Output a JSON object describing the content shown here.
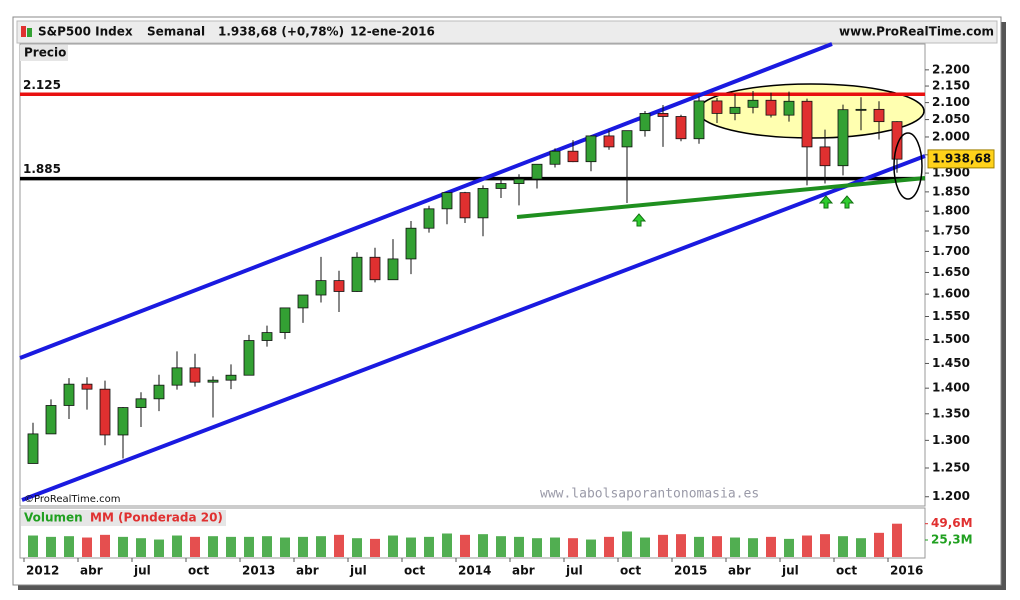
{
  "chart_data": {
    "type": "candlestick",
    "title": "S&P500 Index",
    "period": "Semanal",
    "last_quote": "1.938,68 (+0,78%)",
    "date": "12-ene-2016",
    "source": "www.ProRealTime.com",
    "pane_label": "Precio",
    "watermark": "www.labolsaporantonomasia.es",
    "copyright": "©ProRealTime.com",
    "log_scale": true,
    "up_color": "#33a033",
    "down_color": "#e03030",
    "x": [
      "2012-01",
      "2012-02",
      "2012-03",
      "2012-04",
      "2012-05",
      "2012-06",
      "2012-07",
      "2012-08",
      "2012-09",
      "2012-10",
      "2012-11",
      "2012-12",
      "2013-01",
      "2013-02",
      "2013-03",
      "2013-04",
      "2013-05",
      "2013-06",
      "2013-07",
      "2013-08",
      "2013-09",
      "2013-10",
      "2013-11",
      "2013-12",
      "2014-01",
      "2014-02",
      "2014-03",
      "2014-04",
      "2014-05",
      "2014-06",
      "2014-07",
      "2014-08",
      "2014-09",
      "2014-10",
      "2014-11",
      "2014-12",
      "2015-01",
      "2015-02",
      "2015-03",
      "2015-04",
      "2015-05",
      "2015-06",
      "2015-07",
      "2015-08",
      "2015-09",
      "2015-10",
      "2015-11",
      "2015-12",
      "2016-01"
    ],
    "open": [
      1258,
      1312,
      1366,
      1408,
      1398,
      1310,
      1362,
      1379,
      1406,
      1441,
      1412,
      1416,
      1426,
      1498,
      1515,
      1569,
      1598,
      1631,
      1606,
      1686,
      1633,
      1682,
      1757,
      1806,
      1848,
      1783,
      1859,
      1872,
      1884,
      1924,
      1960,
      1931,
      2003,
      1972,
      2018,
      2068,
      2059,
      1995,
      2105,
      2068,
      2086,
      2107,
      2063,
      2104,
      1972,
      1920,
      2079,
      2080,
      2044
    ],
    "high": [
      1333,
      1378,
      1420,
      1422,
      1415,
      1363,
      1392,
      1427,
      1475,
      1470,
      1424,
      1448,
      1510,
      1530,
      1570,
      1598,
      1687,
      1654,
      1698,
      1709,
      1730,
      1775,
      1814,
      1849,
      1850,
      1867,
      1884,
      1897,
      1924,
      1968,
      1991,
      2005,
      2019,
      2018,
      2075,
      2093,
      2064,
      2119,
      2114,
      2126,
      2135,
      2130,
      2133,
      2112,
      2021,
      2094,
      2116,
      2104,
      2045
    ],
    "low": [
      1258,
      1312,
      1340,
      1358,
      1291,
      1267,
      1325,
      1355,
      1397,
      1403,
      1343,
      1398,
      1426,
      1485,
      1501,
      1536,
      1581,
      1560,
      1605,
      1627,
      1633,
      1646,
      1746,
      1767,
      1770,
      1737,
      1834,
      1815,
      1859,
      1915,
      1930,
      1905,
      1964,
      1821,
      2001,
      1972,
      1988,
      1981,
      2040,
      2048,
      2068,
      2056,
      2044,
      1867,
      1872,
      1894,
      2019,
      1993,
      1901
    ],
    "close": [
      1312,
      1366,
      1408,
      1398,
      1310,
      1362,
      1379,
      1406,
      1441,
      1412,
      1416,
      1426,
      1498,
      1515,
      1569,
      1598,
      1631,
      1606,
      1686,
      1633,
      1682,
      1757,
      1806,
      1848,
      1783,
      1859,
      1872,
      1884,
      1924,
      1960,
      1931,
      2003,
      1972,
      2018,
      2068,
      2059,
      1995,
      2105,
      2068,
      2086,
      2107,
      2063,
      2104,
      1972,
      1920,
      2079,
      2080,
      2044,
      1938
    ],
    "ylim": [
      1186,
      2279
    ],
    "yticks": [
      {
        "value": 1200,
        "label": "1.200"
      },
      {
        "value": 1250,
        "label": "1.250"
      },
      {
        "value": 1300,
        "label": "1.300"
      },
      {
        "value": 1350,
        "label": "1.350"
      },
      {
        "value": 1400,
        "label": "1.400"
      },
      {
        "value": 1450,
        "label": "1.450"
      },
      {
        "value": 1500,
        "label": "1.500"
      },
      {
        "value": 1550,
        "label": "1.550"
      },
      {
        "value": 1600,
        "label": "1.600"
      },
      {
        "value": 1650,
        "label": "1.650"
      },
      {
        "value": 1700,
        "label": "1.700"
      },
      {
        "value": 1750,
        "label": "1.750"
      },
      {
        "value": 1800,
        "label": "1.800"
      },
      {
        "value": 1850,
        "label": "1.850"
      },
      {
        "value": 1900,
        "label": "1.900"
      },
      {
        "value": 1950,
        "label": "1.950"
      },
      {
        "value": 2000,
        "label": "2.000"
      },
      {
        "value": 2050,
        "label": "2.050"
      },
      {
        "value": 2100,
        "label": "2.100"
      },
      {
        "value": 2150,
        "label": "2.150"
      },
      {
        "value": 2200,
        "label": "2.200"
      }
    ],
    "xticks": [
      {
        "value": "2012-01",
        "label": "2012"
      },
      {
        "value": "2012-04",
        "label": "abr"
      },
      {
        "value": "2012-07",
        "label": "jul"
      },
      {
        "value": "2012-10",
        "label": "oct"
      },
      {
        "value": "2013-01",
        "label": "2013"
      },
      {
        "value": "2013-04",
        "label": "abr"
      },
      {
        "value": "2013-07",
        "label": "jul"
      },
      {
        "value": "2013-10",
        "label": "oct"
      },
      {
        "value": "2014-01",
        "label": "2014"
      },
      {
        "value": "2014-04",
        "label": "abr"
      },
      {
        "value": "2014-07",
        "label": "jul"
      },
      {
        "value": "2014-10",
        "label": "oct"
      },
      {
        "value": "2015-01",
        "label": "2015"
      },
      {
        "value": "2015-04",
        "label": "abr"
      },
      {
        "value": "2015-07",
        "label": "jul"
      },
      {
        "value": "2015-10",
        "label": "oct"
      },
      {
        "value": "2016-01",
        "label": "2016"
      }
    ],
    "hlines": [
      {
        "value": 2125,
        "label": "2.125",
        "color": "#e81010"
      },
      {
        "value": 1885,
        "label": "1.885",
        "color": "#000000"
      }
    ],
    "last_price": {
      "value": 1938.68,
      "label": "1.938,68",
      "color": "#ffd21a"
    },
    "volume": {
      "name": "Volumen",
      "ma_name": "MM (Ponderada 20)",
      "values": [
        32,
        30,
        31,
        29,
        33,
        30,
        28,
        26,
        32,
        30,
        31,
        30,
        30,
        31,
        29,
        30,
        31,
        33,
        28,
        27,
        32,
        29,
        30,
        35,
        33,
        34,
        31,
        30,
        28,
        29,
        28,
        26,
        30,
        38,
        29,
        33,
        34,
        30,
        31,
        29,
        28,
        30,
        27,
        32,
        34,
        31,
        28,
        36,
        49.6
      ],
      "ylim": [
        0,
        70
      ],
      "last": {
        "value": 49.6,
        "label": "49,6M",
        "color": "#e03030"
      },
      "ma_last": {
        "value": 25.3,
        "label": "25,3M",
        "color": "#20a020"
      }
    }
  }
}
